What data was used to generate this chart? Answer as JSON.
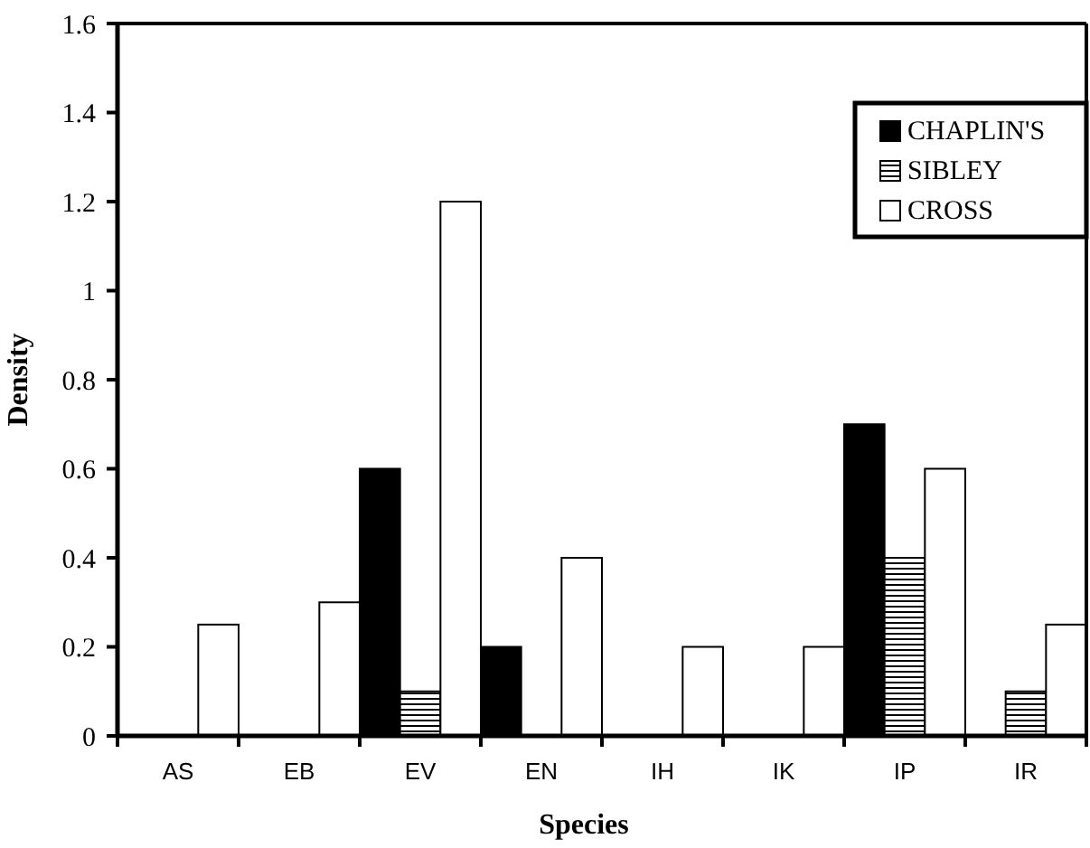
{
  "chart_data": {
    "type": "bar",
    "xlabel": "Species",
    "ylabel": "Density",
    "categories": [
      "AS",
      "EB",
      "EV",
      "EN",
      "IH",
      "IK",
      "IP",
      "IR"
    ],
    "series": [
      {
        "name": "CHAPLIN'S",
        "color": "#000000",
        "values": [
          0,
          0,
          0.6,
          0.2,
          0,
          0,
          0.7,
          0
        ]
      },
      {
        "name": "SIBLEY",
        "color": "#000000",
        "values": [
          0,
          0,
          0.1,
          0,
          0,
          0,
          0.4,
          0.1
        ]
      },
      {
        "name": "CROSS",
        "color": "#ffffff",
        "values": [
          0.25,
          0.3,
          1.2,
          0.4,
          0.2,
          0.2,
          0.6,
          0.25
        ]
      }
    ],
    "ylim": [
      0,
      1.6
    ],
    "yticks": [
      0,
      0.2,
      0.4,
      0.6,
      0.8,
      1,
      1.2,
      1.4,
      1.6
    ],
    "grid": false,
    "legend": "top right"
  }
}
